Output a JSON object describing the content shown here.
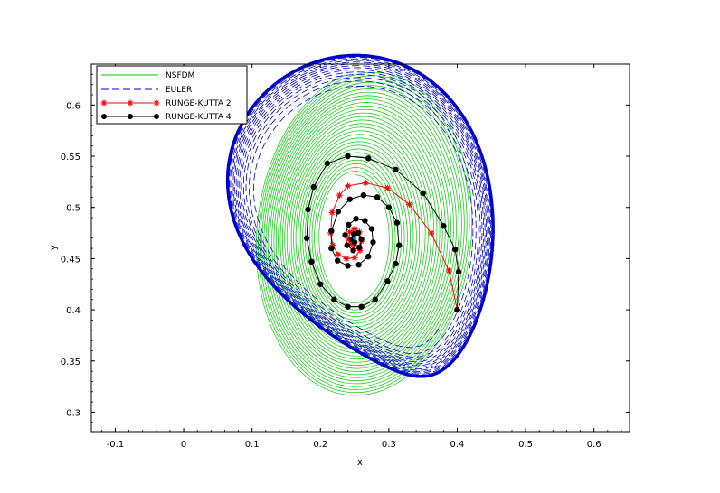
{
  "chart_data": {
    "type": "line",
    "title": "",
    "xlabel": "x",
    "ylabel": "y",
    "xlim": [
      -0.135,
      0.652
    ],
    "ylim": [
      0.281,
      0.64
    ],
    "xticks": [
      -0.1,
      0,
      0.1,
      0.2,
      0.3,
      0.4,
      0.5,
      0.6
    ],
    "xtick_labels": [
      "-0.1",
      "0",
      "0.1",
      "0.2",
      "0.3",
      "0.4",
      "0.5",
      "0.6"
    ],
    "yticks": [
      0.3,
      0.35,
      0.4,
      0.45,
      0.5,
      0.55,
      0.6
    ],
    "ytick_labels": [
      "0.3",
      "0.35",
      "0.4",
      "0.45",
      "0.5",
      "0.55",
      "0.6"
    ],
    "grid": false,
    "legend_position": "top-left",
    "equilibrium": [
      0.25,
      0.47
    ],
    "initial_point": [
      0.4,
      0.4
    ],
    "series": [
      {
        "name": "NSFDM",
        "color": "#00cc00",
        "style": "solid",
        "marker": "none",
        "description_points": [
          [
            0.22,
            0.62
          ],
          [
            0.27,
            0.61
          ],
          [
            0.33,
            0.57
          ],
          [
            0.37,
            0.52
          ],
          [
            0.39,
            0.45
          ],
          [
            0.38,
            0.39
          ],
          [
            0.33,
            0.34
          ],
          [
            0.26,
            0.32
          ],
          [
            0.2,
            0.37
          ],
          [
            0.17,
            0.45
          ],
          [
            0.18,
            0.53
          ],
          [
            0.22,
            0.59
          ]
        ]
      },
      {
        "name": "EULER",
        "color": "#0000cc",
        "style": "dashed",
        "marker": "none"
      },
      {
        "name": "RUNGE-KUTTA 2",
        "color": "#ff0000",
        "style": "solid",
        "marker": "star",
        "points": [
          [
            0.4,
            0.4
          ],
          [
            0.388,
            0.438
          ],
          [
            0.362,
            0.475
          ],
          [
            0.33,
            0.503
          ],
          [
            0.298,
            0.519
          ],
          [
            0.266,
            0.524
          ],
          [
            0.24,
            0.521
          ],
          [
            0.228,
            0.512
          ],
          [
            0.217,
            0.495
          ],
          [
            0.215,
            0.475
          ],
          [
            0.218,
            0.463
          ],
          [
            0.226,
            0.454
          ],
          [
            0.238,
            0.45
          ],
          [
            0.25,
            0.451
          ],
          [
            0.258,
            0.458
          ],
          [
            0.26,
            0.467
          ],
          [
            0.257,
            0.476
          ],
          [
            0.25,
            0.479
          ],
          [
            0.243,
            0.476
          ],
          [
            0.241,
            0.469
          ],
          [
            0.245,
            0.464
          ],
          [
            0.25,
            0.463
          ]
        ]
      },
      {
        "name": "RUNGE-KUTTA 4",
        "color": "#000000",
        "style": "solid",
        "marker": "circle",
        "points": [
          [
            0.4,
            0.4
          ],
          [
            0.402,
            0.437
          ],
          [
            0.397,
            0.459
          ],
          [
            0.38,
            0.482
          ],
          [
            0.35,
            0.514
          ],
          [
            0.31,
            0.537
          ],
          [
            0.27,
            0.548
          ],
          [
            0.24,
            0.55
          ],
          [
            0.21,
            0.543
          ],
          [
            0.19,
            0.52
          ],
          [
            0.182,
            0.498
          ],
          [
            0.18,
            0.47
          ],
          [
            0.187,
            0.447
          ],
          [
            0.2,
            0.425
          ],
          [
            0.22,
            0.41
          ],
          [
            0.24,
            0.403
          ],
          [
            0.26,
            0.403
          ],
          [
            0.28,
            0.41
          ],
          [
            0.298,
            0.428
          ],
          [
            0.31,
            0.445
          ],
          [
            0.315,
            0.463
          ],
          [
            0.312,
            0.485
          ],
          [
            0.3,
            0.5
          ],
          [
            0.283,
            0.51
          ],
          [
            0.263,
            0.512
          ],
          [
            0.243,
            0.508
          ],
          [
            0.226,
            0.496
          ],
          [
            0.216,
            0.477
          ],
          [
            0.216,
            0.46
          ],
          [
            0.225,
            0.448
          ],
          [
            0.24,
            0.443
          ],
          [
            0.256,
            0.444
          ],
          [
            0.27,
            0.452
          ],
          [
            0.277,
            0.466
          ],
          [
            0.275,
            0.479
          ],
          [
            0.265,
            0.487
          ],
          [
            0.252,
            0.489
          ],
          [
            0.241,
            0.483
          ],
          [
            0.236,
            0.473
          ],
          [
            0.239,
            0.463
          ],
          [
            0.248,
            0.458
          ],
          [
            0.257,
            0.461
          ],
          [
            0.26,
            0.469
          ],
          [
            0.255,
            0.475
          ],
          [
            0.249,
            0.474
          ],
          [
            0.246,
            0.469
          ],
          [
            0.25,
            0.466
          ]
        ]
      }
    ]
  }
}
